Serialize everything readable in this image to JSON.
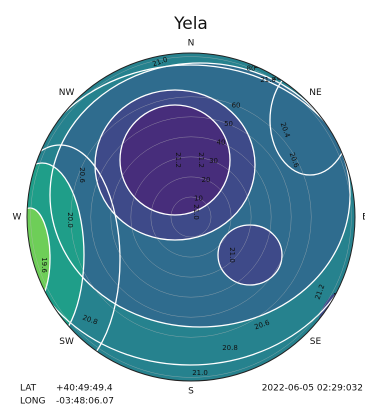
{
  "chart_data": {
    "type": "polar-contour",
    "title": "Yela",
    "directions": [
      "N",
      "NE",
      "E",
      "SE",
      "S",
      "SW",
      "W",
      "NW"
    ],
    "ring_labels": [
      10,
      20,
      30,
      40,
      50,
      60,
      80
    ],
    "levels": [
      {
        "value": 20.6,
        "color": "#26828e"
      },
      {
        "value": 20.8,
        "color": "#2f6c8e"
      },
      {
        "value": 21.0,
        "color": "#3e4a89"
      },
      {
        "value": 21.2,
        "color": "#472d7b"
      },
      {
        "value": 20.2,
        "color": "#1f9e89"
      },
      {
        "value": 19.6,
        "color": "#6ece58"
      }
    ],
    "contour_labels": [
      "21.0",
      "20.8",
      "21.0",
      "20.8",
      "20.4",
      "20.6",
      "21.2",
      "21.2",
      "21.0",
      "21.0",
      "20.6",
      "20.8",
      "21.2",
      "20.6",
      "20.2",
      "20.8",
      "21.0",
      "20.4",
      "20.0",
      "19.6"
    ],
    "footer": {
      "lat_label": "LAT",
      "lat": "+40:49:49.4",
      "datetime": "2022-06-05 02:29:032",
      "long_label": "LONG",
      "long": "-03:48:06.07"
    }
  }
}
